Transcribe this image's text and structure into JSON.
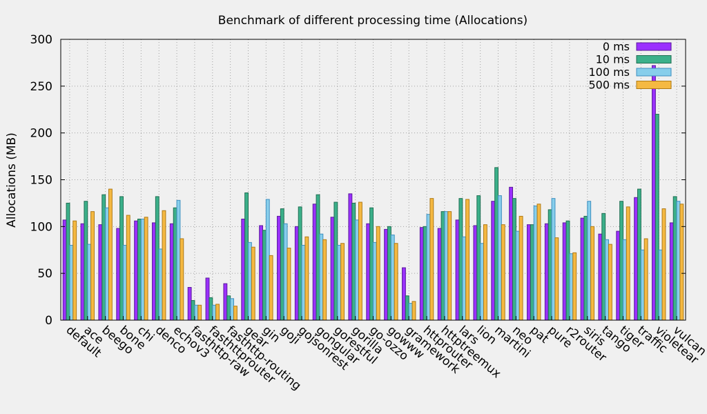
{
  "chart_data": {
    "type": "bar",
    "title": "Benchmark of different processing time (Allocations)",
    "xlabel": "",
    "ylabel": "Allocations (MB)",
    "ylim": [
      0,
      300
    ],
    "yticks": [
      0,
      50,
      100,
      150,
      200,
      250,
      300
    ],
    "grid": true,
    "legend_position": "top-right",
    "categories": [
      "default",
      "ace",
      "beego",
      "bone",
      "chi",
      "denco",
      "echov3",
      "fasthttp-raw",
      "fasthttprouter",
      "fasthttp-routing",
      "gear",
      "gin",
      "goji",
      "gojsonrest",
      "gongular",
      "gorestful",
      "gorilla",
      "go-ozzo",
      "gowww",
      "gramework",
      "httprouter",
      "httptreemux",
      "lars",
      "lion",
      "martini",
      "neo",
      "pat",
      "pure",
      "r2router",
      "siris",
      "tango",
      "tiger",
      "traffic",
      "violetear",
      "vulcan"
    ],
    "series": [
      {
        "name": "0 ms",
        "color": "#9b30ff",
        "stroke": "#5a1a9a",
        "values": [
          107,
          103,
          102,
          98,
          106,
          104,
          103,
          35,
          45,
          39,
          108,
          101,
          111,
          100,
          124,
          110,
          135,
          103,
          97,
          56,
          99,
          98,
          107,
          101,
          127,
          142,
          102,
          103,
          104,
          109,
          92,
          95,
          131,
          272,
          104
        ]
      },
      {
        "name": "10 ms",
        "color": "#3cb08a",
        "stroke": "#1f6e52",
        "values": [
          125,
          127,
          134,
          132,
          108,
          132,
          120,
          21,
          24,
          26,
          136,
          96,
          119,
          121,
          134,
          126,
          125,
          120,
          100,
          26,
          100,
          116,
          130,
          133,
          163,
          130,
          102,
          118,
          106,
          111,
          114,
          127,
          140,
          220,
          132
        ]
      },
      {
        "name": "100 ms",
        "color": "#87ceeb",
        "stroke": "#3f8fbf",
        "values": [
          80,
          81,
          120,
          80,
          108,
          76,
          128,
          16,
          16,
          23,
          83,
          129,
          103,
          80,
          92,
          80,
          107,
          83,
          91,
          18,
          113,
          116,
          89,
          82,
          133,
          95,
          122,
          130,
          71,
          127,
          86,
          86,
          75,
          75,
          127
        ]
      },
      {
        "name": "500 ms",
        "color": "#f5b942",
        "stroke": "#b07a14",
        "values": [
          106,
          116,
          140,
          112,
          110,
          117,
          87,
          16,
          17,
          15,
          78,
          69,
          77,
          89,
          86,
          82,
          126,
          100,
          82,
          20,
          130,
          116,
          129,
          102,
          102,
          111,
          124,
          88,
          72,
          100,
          81,
          121,
          87,
          119,
          124
        ]
      }
    ]
  }
}
